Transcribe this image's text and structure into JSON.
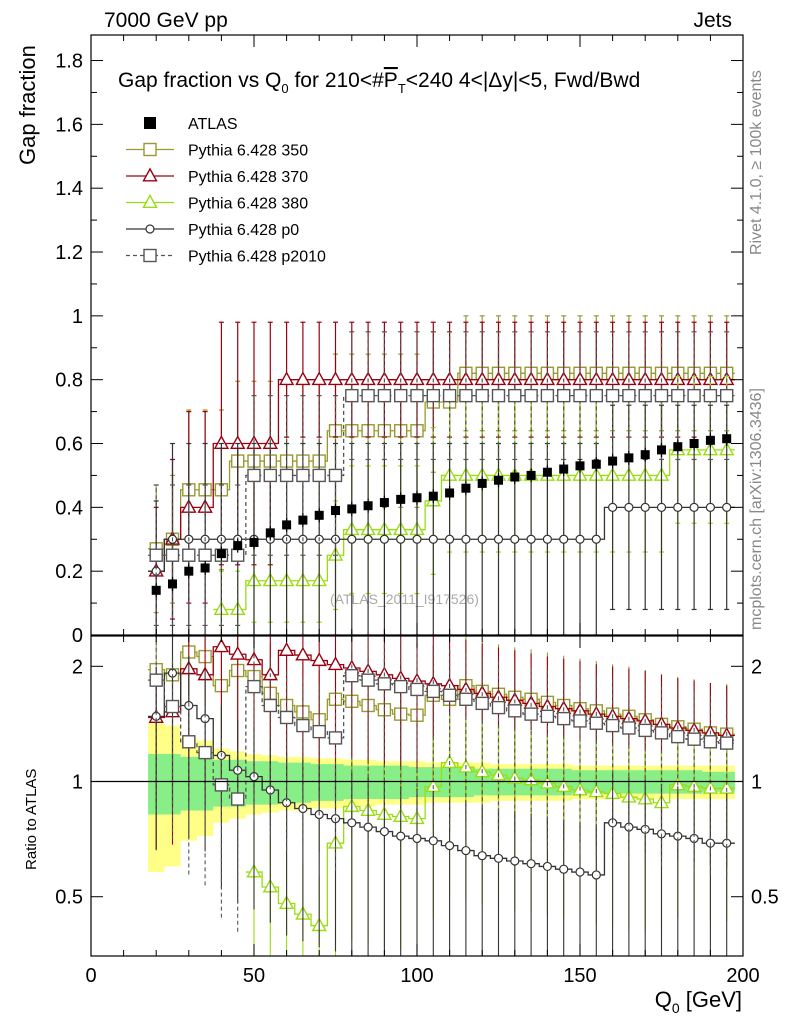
{
  "header": {
    "left": "7000 GeV pp",
    "right": "Jets"
  },
  "side_labels": {
    "rivet": "Rivet 4.1.0, ≥ 100k events",
    "mcplots": "mcplots.cern.ch [arXiv:1306.3436]"
  },
  "chart_data": {
    "type": "scatter",
    "title": "Gap fraction vs Q0 for 210<#PT<240  4<|Δy|<5, Fwd/Bwd",
    "title_parts": {
      "pre": "Gap fraction vs Q",
      "sub0": "0",
      "mid": " for 210<#",
      "p": "P",
      "sub1": "T",
      "post": "<240  4<|Δy|<5, Fwd/Bwd"
    },
    "watermark": "(ATLAS_2011_I917526)",
    "xlabel": "Q0 [GeV]",
    "xlabel_parts": {
      "pre": "Q",
      "sub": "0",
      "post": " [GeV]"
    },
    "ylabel": "Gap fraction",
    "ratio_ylabel": "Ratio to ATLAS",
    "xlim": [
      0,
      200
    ],
    "ylim": [
      0,
      1.88
    ],
    "ratio_ylim": [
      0.35,
      2.4
    ],
    "x_ticks": [
      "0",
      "50",
      "100",
      "150",
      "200"
    ],
    "y_ticks": [
      "0",
      "0.2",
      "0.4",
      "0.6",
      "0.8",
      "1",
      "1.2",
      "1.4",
      "1.6",
      "1.8"
    ],
    "ratio_ticks": [
      "0.5",
      "1",
      "2"
    ],
    "x": [
      20,
      25,
      30,
      35,
      40,
      45,
      50,
      55,
      60,
      65,
      70,
      75,
      80,
      85,
      90,
      95,
      100,
      105,
      110,
      115,
      120,
      125,
      130,
      135,
      140,
      145,
      150,
      155,
      160,
      165,
      170,
      175,
      180,
      185,
      190,
      195
    ],
    "atlas": {
      "name": "ATLAS",
      "values": [
        0.14,
        0.16,
        0.2,
        0.21,
        0.255,
        0.28,
        0.29,
        0.32,
        0.345,
        0.36,
        0.375,
        0.39,
        0.395,
        0.405,
        0.415,
        0.425,
        0.43,
        0.435,
        0.445,
        0.46,
        0.475,
        0.485,
        0.495,
        0.5,
        0.51,
        0.52,
        0.53,
        0.535,
        0.545,
        0.555,
        0.565,
        0.58,
        0.59,
        0.6,
        0.61,
        0.615
      ]
    },
    "series": [
      {
        "name": "Pythia 6.428 350",
        "color": "#999933",
        "marker": "square-open",
        "dashed": false,
        "values": [
          0.27,
          0.3,
          0.455,
          0.455,
          0.455,
          0.545,
          0.545,
          0.545,
          0.545,
          0.545,
          0.545,
          0.64,
          0.64,
          0.64,
          0.64,
          0.64,
          0.64,
          0.73,
          0.73,
          0.82,
          0.82,
          0.82,
          0.82,
          0.82,
          0.82,
          0.82,
          0.82,
          0.82,
          0.82,
          0.82,
          0.82,
          0.82,
          0.82,
          0.82,
          0.82,
          0.82
        ],
        "errors": [
          0.2,
          0.2,
          0.25,
          0.25,
          0.25,
          0.25,
          0.25,
          0.25,
          0.25,
          0.25,
          0.25,
          0.24,
          0.24,
          0.24,
          0.24,
          0.24,
          0.24,
          0.22,
          0.22,
          0.18,
          0.18,
          0.18,
          0.18,
          0.18,
          0.18,
          0.18,
          0.18,
          0.18,
          0.18,
          0.18,
          0.18,
          0.18,
          0.18,
          0.18,
          0.18,
          0.18
        ],
        "ratio": [
          1.96,
          1.9,
          2.18,
          2.12,
          1.78,
          1.95,
          1.88,
          1.7,
          1.58,
          1.52,
          1.45,
          1.64,
          1.62,
          1.58,
          1.54,
          1.5,
          1.49,
          1.68,
          1.64,
          1.78,
          1.72,
          1.69,
          1.66,
          1.64,
          1.61,
          1.58,
          1.55,
          1.53,
          1.5,
          1.48,
          1.45,
          1.41,
          1.39,
          1.37,
          1.34,
          1.33
        ]
      },
      {
        "name": "Pythia 6.428 370",
        "color": "#990011",
        "marker": "triangle-open",
        "dashed": false,
        "values": [
          0.2,
          0.3,
          0.4,
          0.4,
          0.6,
          0.6,
          0.6,
          0.6,
          0.8,
          0.8,
          0.8,
          0.8,
          0.8,
          0.8,
          0.8,
          0.8,
          0.8,
          0.8,
          0.8,
          0.8,
          0.8,
          0.8,
          0.8,
          0.8,
          0.8,
          0.8,
          0.8,
          0.8,
          0.8,
          0.8,
          0.8,
          0.8,
          0.8,
          0.8,
          0.8,
          0.8
        ],
        "errors": [
          0.2,
          0.25,
          0.3,
          0.3,
          0.38,
          0.38,
          0.38,
          0.38,
          0.18,
          0.18,
          0.18,
          0.18,
          0.18,
          0.18,
          0.18,
          0.18,
          0.18,
          0.18,
          0.18,
          0.18,
          0.18,
          0.18,
          0.18,
          0.18,
          0.18,
          0.18,
          0.18,
          0.18,
          0.18,
          0.18,
          0.18,
          0.18,
          0.18,
          0.18,
          0.18,
          0.18
        ],
        "ratio": [
          1.47,
          1.52,
          1.97,
          1.9,
          2.25,
          2.15,
          2.08,
          1.9,
          2.2,
          2.14,
          2.07,
          2.02,
          1.98,
          1.94,
          1.9,
          1.86,
          1.83,
          1.8,
          1.78,
          1.74,
          1.7,
          1.66,
          1.63,
          1.6,
          1.57,
          1.55,
          1.53,
          1.5,
          1.48,
          1.46,
          1.44,
          1.41,
          1.38,
          1.36,
          1.34,
          1.32
        ]
      },
      {
        "name": "Pythia 6.428 380",
        "color": "#99dd11",
        "marker": "triangle-open",
        "dashed": false,
        "values": [
          null,
          null,
          null,
          null,
          0.08,
          0.08,
          0.17,
          0.17,
          0.17,
          0.17,
          0.17,
          0.25,
          0.33,
          0.33,
          0.33,
          0.33,
          0.33,
          0.42,
          0.5,
          0.5,
          0.5,
          0.5,
          0.5,
          0.5,
          0.5,
          0.5,
          0.5,
          0.5,
          0.5,
          0.5,
          0.5,
          0.5,
          0.58,
          0.58,
          0.58,
          0.58
        ],
        "errors": [
          0,
          0,
          0,
          0,
          0.12,
          0.12,
          0.13,
          0.13,
          0.13,
          0.13,
          0.13,
          0.17,
          0.2,
          0.2,
          0.2,
          0.2,
          0.2,
          0.23,
          0.24,
          0.24,
          0.24,
          0.24,
          0.24,
          0.24,
          0.24,
          0.24,
          0.24,
          0.24,
          0.24,
          0.24,
          0.24,
          0.24,
          0.23,
          0.23,
          0.23,
          0.23
        ],
        "ratio": [
          null,
          null,
          null,
          null,
          null,
          null,
          0.58,
          0.53,
          0.48,
          0.45,
          0.42,
          0.69,
          0.86,
          0.84,
          0.82,
          0.81,
          0.8,
          0.97,
          1.12,
          1.09,
          1.06,
          1.04,
          1.02,
          1.01,
          0.99,
          0.97,
          0.95,
          0.94,
          0.93,
          0.91,
          0.9,
          0.88,
          0.98,
          0.97,
          0.96,
          0.96
        ]
      },
      {
        "name": "Pythia 6.428 p0",
        "color": "#333333",
        "marker": "circle-open",
        "dashed": false,
        "values": [
          0.2,
          0.3,
          0.3,
          0.3,
          0.3,
          0.3,
          0.3,
          0.3,
          0.3,
          0.3,
          0.3,
          0.3,
          0.3,
          0.3,
          0.3,
          0.3,
          0.3,
          0.3,
          0.3,
          0.3,
          0.3,
          0.3,
          0.3,
          0.3,
          0.3,
          0.3,
          0.3,
          0.3,
          0.4,
          0.4,
          0.4,
          0.4,
          0.4,
          0.4,
          0.4,
          0.4
        ],
        "errors": [
          0.22,
          0.3,
          0.3,
          0.3,
          0.3,
          0.3,
          0.3,
          0.3,
          0.3,
          0.3,
          0.3,
          0.3,
          0.3,
          0.3,
          0.3,
          0.3,
          0.3,
          0.3,
          0.3,
          0.3,
          0.3,
          0.3,
          0.3,
          0.3,
          0.3,
          0.3,
          0.3,
          0.3,
          0.32,
          0.32,
          0.32,
          0.32,
          0.32,
          0.32,
          0.32,
          0.32
        ],
        "ratio": [
          1.48,
          1.92,
          1.58,
          1.46,
          1.17,
          1.07,
          1.03,
          0.95,
          0.88,
          0.85,
          0.82,
          0.8,
          0.78,
          0.76,
          0.74,
          0.72,
          0.71,
          0.7,
          0.68,
          0.66,
          0.64,
          0.63,
          0.62,
          0.61,
          0.6,
          0.59,
          0.58,
          0.57,
          0.78,
          0.76,
          0.75,
          0.73,
          0.72,
          0.71,
          0.69,
          0.69
        ]
      },
      {
        "name": "Pythia 6.428 p2010",
        "color": "#555555",
        "marker": "square-open",
        "dashed": true,
        "values": [
          0.25,
          0.25,
          0.25,
          0.25,
          0.25,
          0.25,
          0.5,
          0.5,
          0.5,
          0.5,
          0.5,
          0.5,
          0.75,
          0.75,
          0.75,
          0.75,
          0.75,
          0.75,
          0.75,
          0.75,
          0.75,
          0.75,
          0.75,
          0.75,
          0.75,
          0.75,
          0.75,
          0.75,
          0.75,
          0.75,
          0.75,
          0.75,
          0.75,
          0.75,
          0.75,
          0.75
        ],
        "errors": [
          0.22,
          0.22,
          0.22,
          0.22,
          0.22,
          0.22,
          0.25,
          0.25,
          0.25,
          0.25,
          0.25,
          0.25,
          0.2,
          0.2,
          0.2,
          0.2,
          0.2,
          0.2,
          0.2,
          0.2,
          0.2,
          0.2,
          0.2,
          0.2,
          0.2,
          0.2,
          0.2,
          0.2,
          0.2,
          0.2,
          0.2,
          0.2,
          0.2,
          0.2,
          0.2,
          0.2
        ],
        "ratio": [
          1.84,
          1.57,
          1.27,
          1.19,
          0.98,
          0.9,
          1.77,
          1.58,
          1.47,
          1.4,
          1.35,
          1.3,
          1.89,
          1.84,
          1.8,
          1.77,
          1.74,
          1.72,
          1.68,
          1.64,
          1.6,
          1.56,
          1.53,
          1.5,
          1.48,
          1.46,
          1.44,
          1.42,
          1.4,
          1.38,
          1.36,
          1.34,
          1.31,
          1.29,
          1.27,
          1.26
        ]
      }
    ],
    "band_inner": [
      0.18,
      0.18,
      0.16,
      0.16,
      0.14,
      0.14,
      0.13,
      0.13,
      0.12,
      0.12,
      0.11,
      0.11,
      0.1,
      0.1,
      0.1,
      0.1,
      0.09,
      0.09,
      0.09,
      0.09,
      0.08,
      0.08,
      0.08,
      0.08,
      0.08,
      0.08,
      0.07,
      0.07,
      0.07,
      0.07,
      0.07,
      0.07,
      0.07,
      0.07,
      0.06,
      0.06
    ],
    "band_outer": [
      0.42,
      0.4,
      0.3,
      0.28,
      0.22,
      0.2,
      0.18,
      0.17,
      0.16,
      0.16,
      0.15,
      0.15,
      0.14,
      0.14,
      0.13,
      0.13,
      0.13,
      0.12,
      0.12,
      0.12,
      0.12,
      0.11,
      0.11,
      0.11,
      0.11,
      0.11,
      0.1,
      0.1,
      0.1,
      0.1,
      0.1,
      0.1,
      0.1,
      0.1,
      0.1,
      0.1
    ],
    "legend_position": "top-left"
  }
}
